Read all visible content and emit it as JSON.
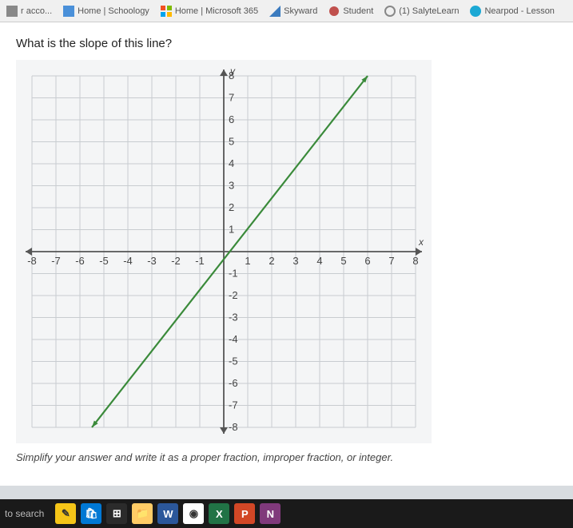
{
  "bookmarks": [
    {
      "label": "r acco...",
      "icon_color": "#888888"
    },
    {
      "label": "Home | Schoology",
      "icon_color": "#4a90d9"
    },
    {
      "label": "Home | Microsoft 365",
      "icon_color": "#00a4ef"
    },
    {
      "label": "Skyward",
      "icon_color": "#3b7bbf"
    },
    {
      "label": "Student",
      "icon_color": "#c0504d"
    },
    {
      "label": "(1) SalyteLearn",
      "icon_color": "#888888"
    },
    {
      "label": "Nearpod - Lesson",
      "icon_color": "#1ba8d4"
    }
  ],
  "question_text": "What is the slope of this line?",
  "instruction_text": "Simplify your answer and write it as a proper fraction, improper fraction, or integer.",
  "graph": {
    "type": "line",
    "x_axis_label": "x",
    "y_axis_label": "y",
    "xlim": [
      -8,
      8
    ],
    "ylim": [
      -8,
      8
    ],
    "xtick_step": 1,
    "ytick_step": 1,
    "x_ticks": [
      -8,
      -7,
      -6,
      -5,
      -4,
      -3,
      -2,
      -1,
      1,
      2,
      3,
      4,
      5,
      6,
      7,
      8
    ],
    "y_ticks": [
      -8,
      -7,
      -6,
      -5,
      -4,
      -3,
      -2,
      -1,
      1,
      2,
      3,
      4,
      5,
      6,
      7,
      8
    ],
    "grid_color": "#c8ccd0",
    "axis_color": "#555555",
    "background_color": "#f4f5f6",
    "tick_label_fontsize": 13,
    "tick_label_color": "#444444",
    "line": {
      "points": [
        [
          -5.5,
          -8
        ],
        [
          6,
          8
        ]
      ],
      "color": "#3a8a3a",
      "width": 2.2,
      "has_arrows": true
    },
    "axis_arrows": true
  },
  "taskbar": {
    "search_text": "to search",
    "items": [
      {
        "name": "notepad",
        "bg": "#f5c518",
        "glyph": "✎"
      },
      {
        "name": "store",
        "bg": "#0078d4",
        "glyph": "🛍"
      },
      {
        "name": "task-view",
        "bg": "#2b2b2b",
        "glyph": "⊞"
      },
      {
        "name": "explorer",
        "bg": "#ffcc66",
        "glyph": "📁"
      },
      {
        "name": "word",
        "bg": "#2b579a",
        "glyph": "W"
      },
      {
        "name": "chrome",
        "bg": "#ffffff",
        "glyph": "◉"
      },
      {
        "name": "excel",
        "bg": "#217346",
        "glyph": "X"
      },
      {
        "name": "powerpoint",
        "bg": "#d24726",
        "glyph": "P"
      },
      {
        "name": "onenote",
        "bg": "#80397b",
        "glyph": "N"
      }
    ]
  },
  "colors": {
    "page_bg": "#d8dce0",
    "content_bg": "#ffffff",
    "taskbar_bg": "#1a1a1a"
  }
}
